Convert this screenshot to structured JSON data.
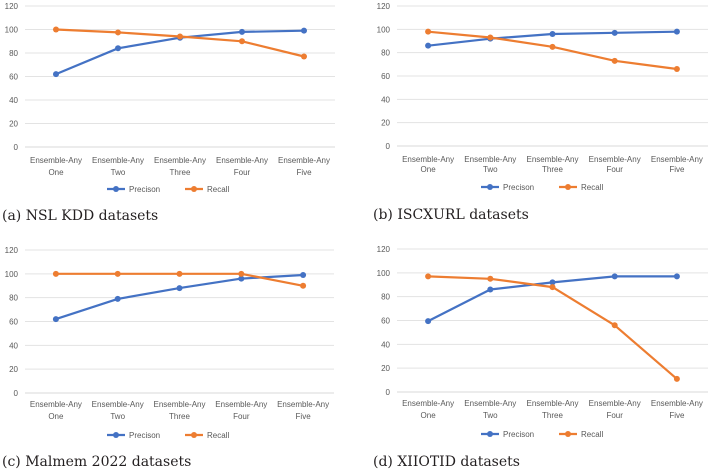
{
  "chart_data": [
    {
      "type": "line",
      "caption": "(a) NSL KDD datasets",
      "categories": [
        "Ensemble-Any One",
        "Ensemble-Any Two",
        "Ensemble-Any Three",
        "Ensemble-Any Four",
        "Ensemble-Any Five"
      ],
      "ylim": [
        0,
        120
      ],
      "yticks": [
        0,
        20,
        40,
        60,
        80,
        100,
        120
      ],
      "grid": true,
      "legend": "bottom-center",
      "series": [
        {
          "name": "Precison",
          "color": "#4472c4",
          "values": [
            62,
            84,
            93,
            98,
            99
          ]
        },
        {
          "name": "Recall",
          "color": "#ed7d31",
          "values": [
            100,
            97.5,
            94,
            90,
            77
          ]
        }
      ]
    },
    {
      "type": "line",
      "caption": "(b) ISCXURL datasets",
      "categories": [
        "Ensemble-Any One",
        "Ensemble-Any Two",
        "Ensemble-Any Three",
        "Ensemble-Any Four",
        "Ensemble-Any Five"
      ],
      "ylim": [
        0,
        120
      ],
      "yticks": [
        0,
        20,
        40,
        60,
        80,
        100,
        120
      ],
      "grid": true,
      "legend": "bottom-center",
      "series": [
        {
          "name": "Precison",
          "color": "#4472c4",
          "values": [
            86,
            92,
            96,
            97,
            98
          ]
        },
        {
          "name": "Recall",
          "color": "#ed7d31",
          "values": [
            98,
            93,
            85,
            73,
            66
          ]
        }
      ]
    },
    {
      "type": "line",
      "caption": "(c) Malmem 2022 datasets",
      "categories": [
        "Ensemble-Any One",
        "Ensemble-Any Two",
        "Ensemble-Any Three",
        "Ensemble-Any Four",
        "Ensemble-Any Five"
      ],
      "ylim": [
        0,
        120
      ],
      "yticks": [
        0,
        20,
        40,
        60,
        80,
        100,
        120
      ],
      "grid": true,
      "legend": "bottom-center",
      "series": [
        {
          "name": "Precison",
          "color": "#4472c4",
          "values": [
            62,
            79,
            88,
            96,
            99
          ]
        },
        {
          "name": "Recall",
          "color": "#ed7d31",
          "values": [
            100,
            100,
            100,
            100,
            90
          ]
        }
      ]
    },
    {
      "type": "line",
      "caption": "(d) XIIOTID datasets",
      "categories": [
        "Ensemble-Any One",
        "Ensemble-Any Two",
        "Ensemble-Any Three",
        "Ensemble-Any Four",
        "Ensemble-Any Five"
      ],
      "ylim": [
        0,
        120
      ],
      "yticks": [
        0,
        20,
        40,
        60,
        80,
        100,
        120
      ],
      "grid": true,
      "legend": "bottom-center",
      "series": [
        {
          "name": "Precison",
          "color": "#4472c4",
          "values": [
            59.5,
            86,
            92,
            97,
            97
          ]
        },
        {
          "name": "Recall",
          "color": "#ed7d31",
          "values": [
            97,
            95,
            88,
            56,
            11
          ]
        }
      ]
    }
  ]
}
